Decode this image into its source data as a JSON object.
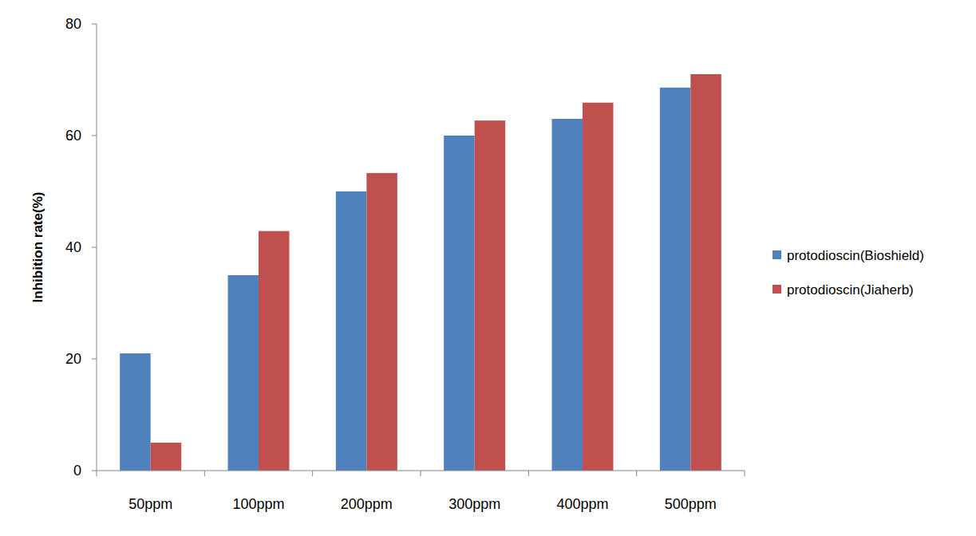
{
  "chart_data": {
    "type": "bar",
    "categories": [
      "50ppm",
      "100ppm",
      "200ppm",
      "300ppm",
      "400ppm",
      "500ppm"
    ],
    "series": [
      {
        "name": "protodioscin(Bioshield)",
        "color": "#4f81bd",
        "values": [
          21,
          35,
          50,
          60,
          63,
          68.6
        ]
      },
      {
        "name": "protodioscin(Jiaherb)",
        "color": "#c0504d",
        "values": [
          5,
          42.9,
          53.3,
          62.7,
          65.9,
          71
        ]
      }
    ],
    "y_label": "Inhibition rate(%)",
    "ylim": [
      0,
      80
    ],
    "yticks": [
      0,
      20,
      40,
      60,
      80
    ],
    "grid": false,
    "legend": "right"
  }
}
